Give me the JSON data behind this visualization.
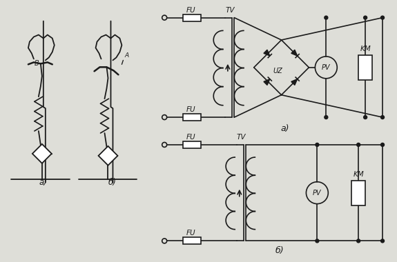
{
  "bg_color": "#deded8",
  "line_color": "#1a1a1a",
  "lw": 1.2,
  "fig_width": 5.75,
  "fig_height": 3.8,
  "labels": {
    "FU": "FU",
    "TV": "TV",
    "UZ": "UZ",
    "PV": "PV",
    "KM": "KM",
    "a_top": "а)",
    "b_top": "б)"
  }
}
